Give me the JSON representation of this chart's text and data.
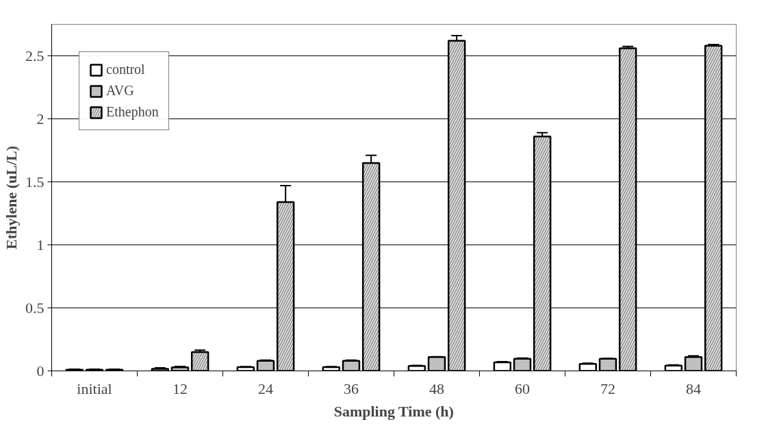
{
  "chart_data": {
    "type": "bar",
    "xlabel": "Sampling Time (h)",
    "ylabel": "Ethylene (uL/L)",
    "categories": [
      "initial",
      "12",
      "24",
      "36",
      "48",
      "60",
      "72",
      "84"
    ],
    "series": [
      {
        "name": "control",
        "color": "#ffffff",
        "values": [
          0.01,
          0.016,
          0.03,
          0.03,
          0.04,
          0.068,
          0.056,
          0.042
        ],
        "errors": [
          0.003,
          0.008,
          0.004,
          0.004,
          0.004,
          0.005,
          0.005,
          0.006
        ]
      },
      {
        "name": "AVG",
        "color": "#c0c0c0",
        "values": [
          0.01,
          0.028,
          0.08,
          0.08,
          0.11,
          0.096,
          0.096,
          0.11
        ],
        "errors": [
          0.003,
          0.008,
          0.005,
          0.005,
          0.003,
          0.006,
          0.003,
          0.01
        ]
      },
      {
        "name": "Ethephon",
        "color": "#e0e0e0",
        "values": [
          0.01,
          0.15,
          1.34,
          1.65,
          2.62,
          1.86,
          2.56,
          2.58
        ],
        "errors": [
          0.003,
          0.015,
          0.13,
          0.06,
          0.04,
          0.03,
          0.015,
          0.01
        ]
      }
    ],
    "ylim": [
      0,
      2.75
    ],
    "yticks": [
      0,
      0.5,
      1,
      1.5,
      2,
      2.5
    ],
    "grid": "y",
    "legend": "top left"
  }
}
